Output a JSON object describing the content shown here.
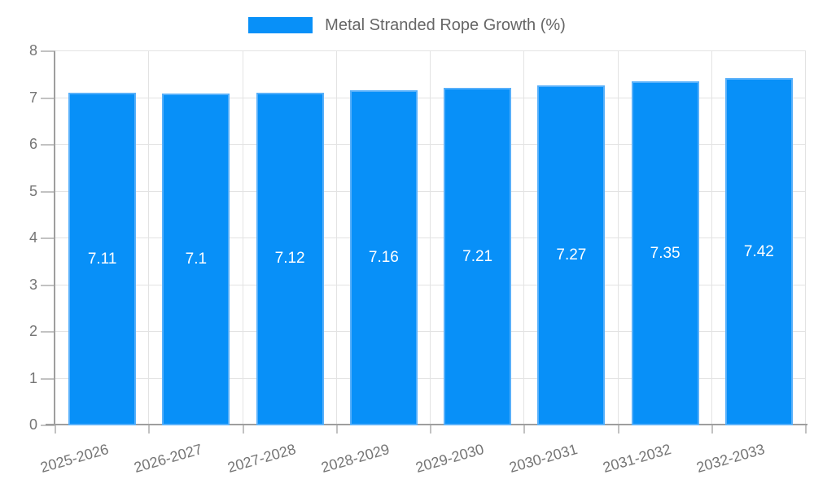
{
  "legend": {
    "label": "Metal Stranded Rope Growth (%)"
  },
  "chart_data": {
    "type": "bar",
    "title": "Metal Stranded Rope Growth (%)",
    "categories": [
      "2025-2026",
      "2026-2027",
      "2027-2028",
      "2028-2029",
      "2029-2030",
      "2030-2031",
      "2031-2032",
      "2032-2033"
    ],
    "values": [
      7.11,
      7.1,
      7.12,
      7.16,
      7.21,
      7.27,
      7.35,
      7.42
    ],
    "value_labels": [
      "7.11",
      "7.1",
      "7.12",
      "7.16",
      "7.21",
      "7.27",
      "7.35",
      "7.42"
    ],
    "xlabel": "",
    "ylabel": "",
    "ylim": [
      0,
      8
    ],
    "y_ticks": [
      0,
      1,
      2,
      3,
      4,
      5,
      6,
      7,
      8
    ],
    "grid": true,
    "legend_position": "top",
    "x_tick_rotation_deg": -16,
    "colors": {
      "bar_fill": "#0890f8",
      "bar_border": "#58b0fa",
      "grid": "#e3e3e3",
      "axis": "#9e9e9e",
      "tick": "#c2c2c2",
      "tick_label": "#757575",
      "legend_text": "#666666",
      "value_label": "#ffffff",
      "background": "#ffffff"
    }
  }
}
